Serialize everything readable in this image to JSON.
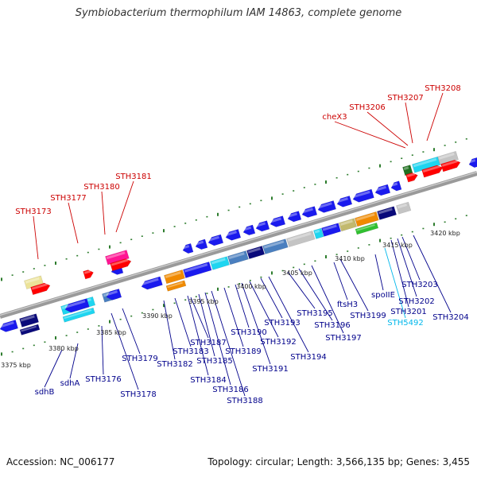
{
  "title": "Symbiobacterium thermophilum IAM 14863, complete genome",
  "footer": {
    "accession": "Accession: NC_006177",
    "summary": "Topology: circular; Length: 3,566,135 bp; Genes: 3,455"
  },
  "colors": {
    "red_label": "#cc0000",
    "blue_label": "#00008b",
    "cyan_label": "#00b7eb",
    "backbone": "#8c8c8c",
    "tick": "#2e7d2e"
  },
  "scale_labels": [
    "3375 kbp",
    "3380 kbp",
    "3385 kbp",
    "3390 kbp",
    "3395 kbp",
    "3400 kbp",
    "3405 kbp",
    "3410 kbp",
    "3415 kbp",
    "3420 kbp"
  ],
  "top_labels": [
    "STH3173",
    "STH3177",
    "STH3180",
    "STH3181",
    "cheX3",
    "STH3206",
    "STH3207",
    "STH3208"
  ],
  "bottom_labels": [
    "sdhB",
    "sdhA",
    "STH3176",
    "STH3178",
    "STH3179",
    "STH3182",
    "STH3183",
    "STH3184",
    "STH3185",
    "STH3186",
    "STH3187",
    "STH3188",
    "STH3189",
    "STH3190",
    "STH3191",
    "STH3192",
    "STH3193",
    "STH3194",
    "STH3195",
    "STH3196",
    "STH3197",
    "ftsH3",
    "STH3199",
    "spoIIE",
    "STH5492",
    "STH3201",
    "STH3202",
    "STH3203",
    "STH3204"
  ]
}
